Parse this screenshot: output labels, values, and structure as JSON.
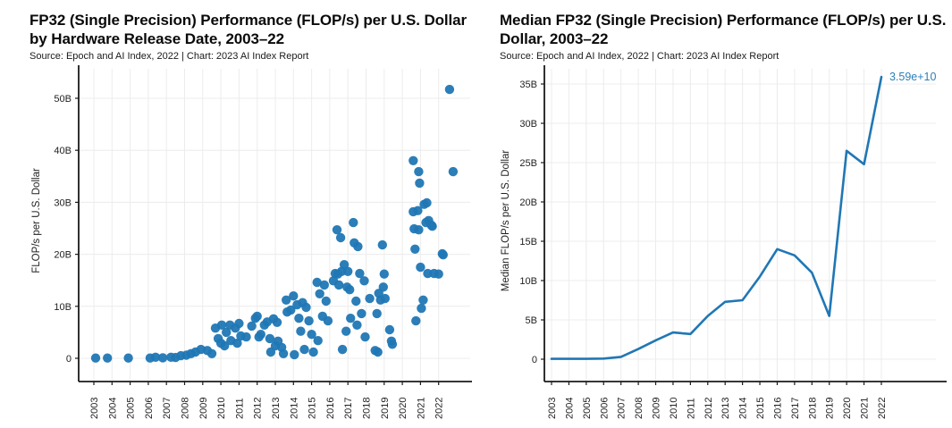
{
  "colors": {
    "accent": "#2077b4",
    "annotation": "#2d7fb8",
    "grid": "#ececec",
    "axis": "#1a1a1a",
    "tick_text": "#1f1f1f"
  },
  "chart_data": [
    {
      "type": "scatter",
      "title": "FP32 (Single Precision) Performance (FLOP/s) per U.S. Dollar by Hardware Release Date, 2003–22",
      "subtitle": "Source: Epoch and AI Index, 2022 | Chart: 2023 AI Index Report",
      "xlabel": "",
      "ylabel": "FLOP/s per U.S. Dollar",
      "x_ticks": [
        "2003",
        "2004",
        "2005",
        "2006",
        "2007",
        "2008",
        "2009",
        "2010",
        "2011",
        "2012",
        "2013",
        "2014",
        "2015",
        "2016",
        "2017",
        "2018",
        "2019",
        "2020",
        "2021",
        "2022"
      ],
      "y_ticks": [
        [
          0,
          "0"
        ],
        [
          10,
          "10B"
        ],
        [
          20,
          "20B"
        ],
        [
          30,
          "30B"
        ],
        [
          40,
          "40B"
        ],
        [
          50,
          "50B"
        ]
      ],
      "xlim": [
        2002.5,
        2023.2
      ],
      "ylim_billions": [
        0,
        55
      ],
      "grid": true,
      "units_note": "values in billions of FLOP/s per U.S. dollar; x = hardware release date",
      "points": [
        [
          2003.1,
          0.05
        ],
        [
          2003.75,
          0.05
        ],
        [
          2004.9,
          0.05
        ],
        [
          2006.1,
          0.05
        ],
        [
          2006.4,
          0.2
        ],
        [
          2006.8,
          0.1
        ],
        [
          2007.25,
          0.2
        ],
        [
          2007.5,
          0.15
        ],
        [
          2007.8,
          0.5
        ],
        [
          2008.1,
          0.6
        ],
        [
          2008.35,
          0.9
        ],
        [
          2008.6,
          1.2
        ],
        [
          2008.9,
          1.7
        ],
        [
          2009.25,
          1.5
        ],
        [
          2009.5,
          0.9
        ],
        [
          2009.7,
          5.8
        ],
        [
          2009.85,
          3.8
        ],
        [
          2010.0,
          2.9
        ],
        [
          2010.05,
          6.4
        ],
        [
          2010.2,
          2.4
        ],
        [
          2010.3,
          5.0
        ],
        [
          2010.5,
          6.4
        ],
        [
          2010.55,
          3.4
        ],
        [
          2010.8,
          5.8
        ],
        [
          2010.9,
          2.9
        ],
        [
          2011.0,
          6.7
        ],
        [
          2011.1,
          4.3
        ],
        [
          2011.4,
          4.1
        ],
        [
          2011.7,
          6.2
        ],
        [
          2011.9,
          7.7
        ],
        [
          2012.0,
          8.1
        ],
        [
          2012.1,
          4.1
        ],
        [
          2012.2,
          4.6
        ],
        [
          2012.4,
          6.4
        ],
        [
          2012.55,
          7.0
        ],
        [
          2012.7,
          3.8
        ],
        [
          2012.75,
          1.2
        ],
        [
          2012.9,
          7.6
        ],
        [
          2013.0,
          2.4
        ],
        [
          2013.1,
          6.9
        ],
        [
          2013.15,
          3.3
        ],
        [
          2013.35,
          2.1
        ],
        [
          2013.45,
          0.9
        ],
        [
          2013.6,
          11.2
        ],
        [
          2013.65,
          8.9
        ],
        [
          2013.85,
          9.3
        ],
        [
          2014.0,
          12.0
        ],
        [
          2014.05,
          0.7
        ],
        [
          2014.2,
          10.3
        ],
        [
          2014.3,
          7.7
        ],
        [
          2014.4,
          5.2
        ],
        [
          2014.5,
          10.7
        ],
        [
          2014.6,
          1.7
        ],
        [
          2014.7,
          9.8
        ],
        [
          2014.85,
          7.2
        ],
        [
          2015.0,
          4.6
        ],
        [
          2015.1,
          1.2
        ],
        [
          2015.3,
          14.6
        ],
        [
          2015.35,
          3.4
        ],
        [
          2015.45,
          12.4
        ],
        [
          2015.6,
          8.1
        ],
        [
          2015.7,
          14.1
        ],
        [
          2015.8,
          11.0
        ],
        [
          2015.9,
          7.2
        ],
        [
          2016.2,
          14.9
        ],
        [
          2016.3,
          16.3
        ],
        [
          2016.4,
          24.7
        ],
        [
          2016.45,
          16.2
        ],
        [
          2016.5,
          14.1
        ],
        [
          2016.6,
          23.2
        ],
        [
          2016.65,
          16.7
        ],
        [
          2016.7,
          1.7
        ],
        [
          2016.8,
          18.0
        ],
        [
          2016.9,
          5.2
        ],
        [
          2016.95,
          13.7
        ],
        [
          2017.0,
          16.7
        ],
        [
          2017.1,
          13.2
        ],
        [
          2017.15,
          7.7
        ],
        [
          2017.3,
          26.1
        ],
        [
          2017.35,
          22.2
        ],
        [
          2017.45,
          11.0
        ],
        [
          2017.5,
          6.4
        ],
        [
          2017.55,
          21.5
        ],
        [
          2017.65,
          16.3
        ],
        [
          2017.75,
          8.6
        ],
        [
          2017.9,
          14.9
        ],
        [
          2017.95,
          4.1
        ],
        [
          2018.2,
          11.5
        ],
        [
          2018.5,
          1.5
        ],
        [
          2018.6,
          8.6
        ],
        [
          2018.65,
          1.2
        ],
        [
          2018.7,
          12.5
        ],
        [
          2018.8,
          11.2
        ],
        [
          2018.9,
          21.8
        ],
        [
          2018.95,
          13.7
        ],
        [
          2019.0,
          16.2
        ],
        [
          2019.05,
          11.5
        ],
        [
          2019.3,
          5.5
        ],
        [
          2019.4,
          3.3
        ],
        [
          2019.45,
          2.7
        ],
        [
          2020.6,
          38.0
        ],
        [
          2020.6,
          28.2
        ],
        [
          2020.65,
          24.9
        ],
        [
          2020.7,
          21.0
        ],
        [
          2020.75,
          7.2
        ],
        [
          2020.85,
          28.4
        ],
        [
          2020.9,
          35.9
        ],
        [
          2020.95,
          33.7
        ],
        [
          2020.9,
          24.7
        ],
        [
          2021.0,
          17.5
        ],
        [
          2021.05,
          9.6
        ],
        [
          2021.15,
          11.2
        ],
        [
          2021.2,
          29.6
        ],
        [
          2021.3,
          26.1
        ],
        [
          2021.35,
          29.9
        ],
        [
          2021.4,
          16.3
        ],
        [
          2021.45,
          26.5
        ],
        [
          2021.6,
          25.6
        ],
        [
          2021.65,
          25.4
        ],
        [
          2021.75,
          16.3
        ],
        [
          2022.0,
          16.2
        ],
        [
          2022.2,
          20.1
        ],
        [
          2022.25,
          19.9
        ],
        [
          2022.6,
          51.7
        ],
        [
          2022.8,
          35.9
        ]
      ]
    },
    {
      "type": "line",
      "title": "Median FP32 (Single Precision) Performance (FLOP/s) per U.S. Dollar, 2003–22",
      "subtitle": "Source: Epoch and AI Index, 2022 | Chart: 2023 AI Index Report",
      "xlabel": "",
      "ylabel": "Median FLOP/s per U.S. Dollar",
      "x_ticks": [
        "2003",
        "2004",
        "2005",
        "2006",
        "2007",
        "2008",
        "2009",
        "2010",
        "2011",
        "2012",
        "2013",
        "2014",
        "2015",
        "2016",
        "2017",
        "2018",
        "2019",
        "2020",
        "2021",
        "2022"
      ],
      "y_ticks": [
        [
          0,
          "0"
        ],
        [
          5,
          "5B"
        ],
        [
          10,
          "10B"
        ],
        [
          15,
          "15B"
        ],
        [
          20,
          "20B"
        ],
        [
          25,
          "25B"
        ],
        [
          30,
          "30B"
        ],
        [
          35,
          "35B"
        ]
      ],
      "ylim_billions": [
        0,
        37
      ],
      "grid": true,
      "categories": [
        2003,
        2004,
        2005,
        2006,
        2007,
        2008,
        2009,
        2010,
        2011,
        2012,
        2013,
        2014,
        2015,
        2016,
        2017,
        2018,
        2019,
        2020,
        2021,
        2022
      ],
      "values_billions": [
        0.04,
        0.04,
        0.05,
        0.08,
        0.3,
        1.3,
        2.4,
        3.4,
        3.2,
        5.5,
        7.3,
        7.5,
        10.5,
        14.0,
        13.2,
        11.0,
        5.5,
        26.5,
        24.8,
        35.9
      ],
      "end_annotation": "3.59e+10",
      "legend": "none"
    }
  ]
}
